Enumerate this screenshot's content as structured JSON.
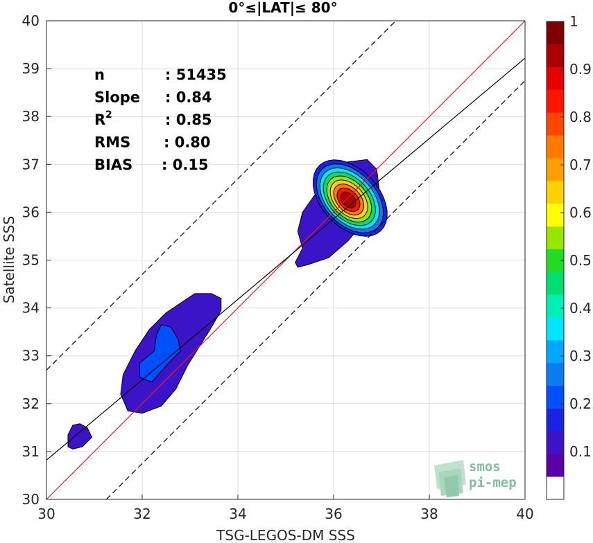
{
  "chart_data": {
    "type": "contour",
    "title": "0°≤|LAT|≤ 80°",
    "xlabel": "TSG-LEGOS-DM SSS",
    "ylabel": "Satellite SSS",
    "xlim": [
      30,
      40
    ],
    "ylim": [
      30,
      40
    ],
    "xticks": [
      "30",
      "32",
      "34",
      "36",
      "38",
      "40"
    ],
    "yticks": [
      "30",
      "31",
      "32",
      "33",
      "34",
      "35",
      "36",
      "37",
      "38",
      "39",
      "40"
    ],
    "grid": true,
    "stats": [
      {
        "label": "n",
        "value": ": 51435"
      },
      {
        "label": "Slope",
        "value": ": 0.84"
      },
      {
        "label": "R",
        "sup": "2",
        "value": ": 0.85"
      },
      {
        "label": "RMS",
        "value": ": 0.80"
      },
      {
        "label": "BIAS",
        "value": ": 0.15"
      }
    ],
    "lines": {
      "identity": {
        "slope": 1,
        "intercept": 0,
        "color": "#e6191a"
      },
      "fit": {
        "slope": 0.84,
        "intercept": 5.62,
        "color": "#000000"
      },
      "upper_dashed": {
        "slope": 1,
        "intercept": 2.7,
        "color": "#000000"
      },
      "lower_dashed": {
        "slope": 1,
        "intercept": -1.25,
        "color": "#000000"
      }
    },
    "density_regions": [
      {
        "level": 0.05,
        "center": [
          30.7,
          31.3
        ],
        "note": "small"
      },
      {
        "level": 0.05,
        "center": [
          32.4,
          33.0
        ]
      },
      {
        "level": 0.2,
        "center": [
          32.4,
          32.9
        ]
      },
      {
        "level": 0.05,
        "center": [
          36.0,
          36.0
        ]
      },
      {
        "level": 1.0,
        "center": [
          36.4,
          36.3
        ]
      }
    ],
    "colorbar": {
      "ticks": [
        "0.1",
        "0.2",
        "0.3",
        "0.4",
        "0.5",
        "0.6",
        "0.7",
        "0.8",
        "0.9",
        "1"
      ],
      "range": [
        0,
        1
      ],
      "colors": [
        "#ffffff",
        "#5a00aa",
        "#3c14c8",
        "#1a22e6",
        "#0050ff",
        "#0a7cf0",
        "#00a8ff",
        "#00e6ff",
        "#00f0b8",
        "#00e070",
        "#22dc22",
        "#96e600",
        "#ffff00",
        "#ffd200",
        "#ffa000",
        "#ff7800",
        "#ff4600",
        "#ff1400",
        "#e60000",
        "#aa0000",
        "#7f0000"
      ]
    }
  },
  "logo": {
    "line1": "smos",
    "line2": "pi-mep"
  }
}
